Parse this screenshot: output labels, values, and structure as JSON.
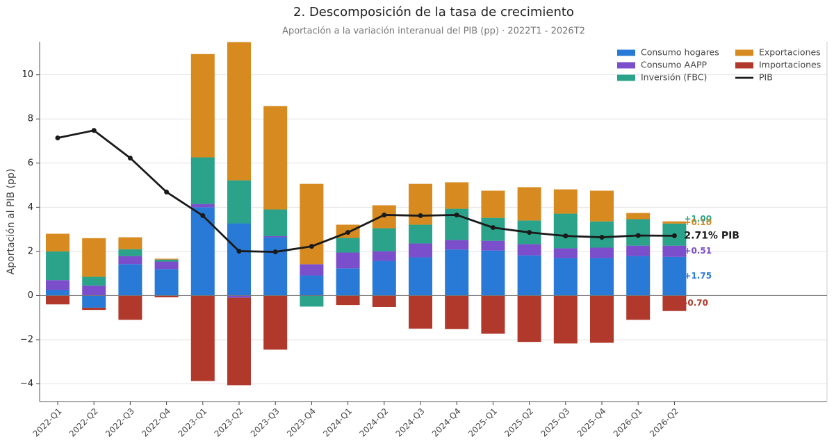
{
  "chart_data": {
    "type": "bar",
    "stacked": true,
    "title": "2. Descomposición de la tasa de crecimiento",
    "subtitle": "Aportación a la variación interanual del PIB (pp) · 2022T1 - 2026T2",
    "y_label": "Aportación al PIB (pp)",
    "categories": [
      "2022-Q1",
      "2022-Q2",
      "2022-Q3",
      "2022-Q4",
      "2023-Q1",
      "2023-Q2",
      "2023-Q3",
      "2023-Q4",
      "2024-Q1",
      "2024-Q2",
      "2024-Q3",
      "2024-Q4",
      "2025-Q1",
      "2025-Q2",
      "2025-Q3",
      "2025-Q4",
      "2026-Q1",
      "2026-Q2"
    ],
    "series": [
      {
        "name": "Consumo hogares",
        "color": "#2979d6",
        "end_label": "+1.75",
        "values": [
          0.25,
          -0.55,
          1.42,
          1.2,
          4.0,
          3.27,
          2.64,
          0.91,
          1.23,
          1.57,
          1.73,
          2.08,
          2.04,
          1.82,
          1.7,
          1.7,
          1.79,
          1.75
        ]
      },
      {
        "name": "Consumo AAPP",
        "color": "#7b4fcc",
        "end_label": "+0.51",
        "values": [
          0.45,
          0.45,
          0.37,
          0.34,
          0.15,
          -0.1,
          0.05,
          0.51,
          0.72,
          0.44,
          0.63,
          0.44,
          0.44,
          0.51,
          0.44,
          0.47,
          0.47,
          0.51
        ]
      },
      {
        "name": "Inversión (FBC)",
        "color": "#2ba38a",
        "end_label": "+1.00",
        "values": [
          1.3,
          0.4,
          0.31,
          0.09,
          2.11,
          1.95,
          1.21,
          -0.5,
          0.66,
          1.04,
          0.85,
          1.41,
          1.04,
          1.07,
          1.57,
          1.19,
          1.2,
          1.0
        ]
      },
      {
        "name": "Exportaciones",
        "color": "#d68a20",
        "end_label": "+0.10",
        "values": [
          0.8,
          1.75,
          0.54,
          0.04,
          4.68,
          6.26,
          4.68,
          3.64,
          0.6,
          1.04,
          1.85,
          1.2,
          1.23,
          1.51,
          1.1,
          1.39,
          0.28,
          0.1
        ]
      },
      {
        "name": "Importaciones",
        "color": "#b0392c",
        "end_label": "-0.70",
        "values": [
          -0.4,
          -0.1,
          -1.1,
          -0.08,
          -3.87,
          -3.96,
          -2.45,
          0,
          -0.43,
          -0.52,
          -1.5,
          -1.52,
          -1.73,
          -2.1,
          -2.17,
          -2.14,
          -1.1,
          -0.7
        ]
      },
      {
        "name": "PIB",
        "type": "line",
        "color": "#1a1a1a",
        "end_label": "2.71%  PIB",
        "values": [
          7.14,
          7.48,
          6.23,
          4.69,
          3.62,
          2.01,
          1.98,
          2.23,
          2.86,
          3.65,
          3.62,
          3.65,
          3.08,
          2.86,
          2.7,
          2.64,
          2.72,
          2.71
        ]
      }
    ],
    "ylim": [
      -4.8,
      11.5
    ],
    "yticks": [
      {
        "value": -4,
        "label": "−4"
      },
      {
        "value": -2,
        "label": "−2"
      },
      0,
      2,
      4,
      6,
      8,
      10
    ],
    "grid": true,
    "legend": "upper right"
  }
}
